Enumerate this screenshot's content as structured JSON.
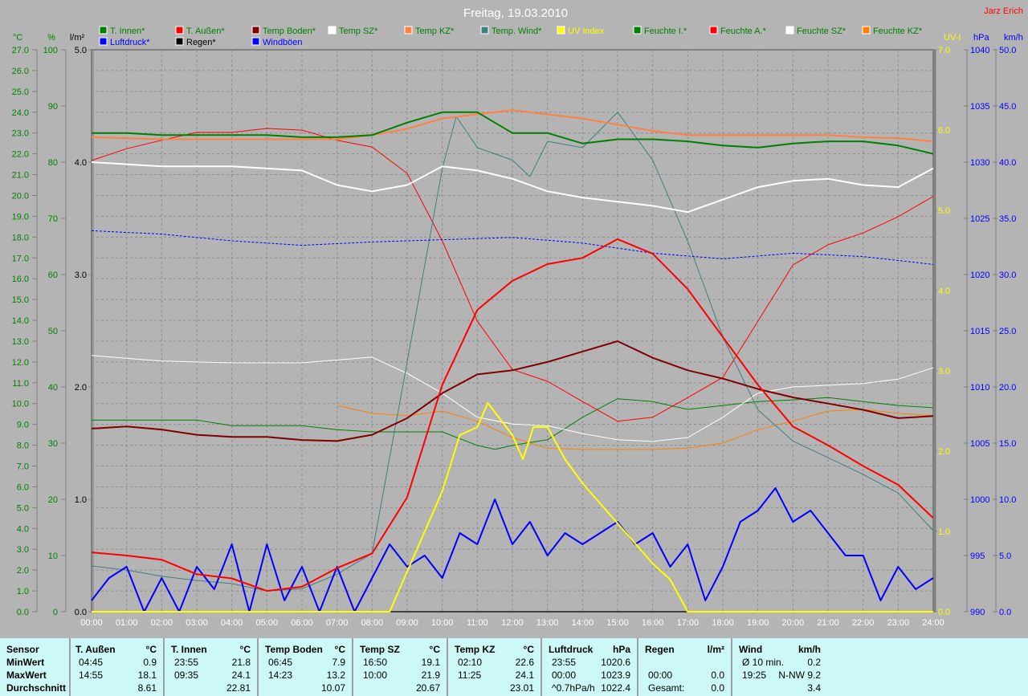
{
  "title": "Freitag, 19.03.2010",
  "author": "Jarz Erich",
  "colors": {
    "background": "#b4b4b4",
    "table_bg": "#ccf8f8"
  },
  "legend": [
    {
      "label": "T. Innen*",
      "swatch": "#008000",
      "text_color": "#008000"
    },
    {
      "label": "T. Außen*",
      "swatch": "#ff0000",
      "text_color": "#008000"
    },
    {
      "label": "Temp Boden*",
      "swatch": "#800000",
      "text_color": "#008000"
    },
    {
      "label": "Temp SZ*",
      "swatch": "#ffffff",
      "text_color": "#008000"
    },
    {
      "label": "Temp KZ*",
      "swatch": "#ff8040",
      "text_color": "#008000"
    },
    {
      "label": "Temp. Wind*",
      "swatch": "#408080",
      "text_color": "#008000"
    },
    {
      "label": "UV Index",
      "swatch": "#ffff00",
      "text_color": "#ffff00"
    },
    {
      "label": "Feuchte I.*",
      "swatch": "#008000",
      "text_color": "#008000"
    },
    {
      "label": "Feuchte A.*",
      "swatch": "#ff0000",
      "text_color": "#008000"
    },
    {
      "label": "Feuchte SZ*",
      "swatch": "#ffffff",
      "text_color": "#008000"
    },
    {
      "label": "Feuchte KZ*",
      "swatch": "#ff8000",
      "text_color": "#008000"
    },
    {
      "label": "Luftdruck*",
      "swatch": "#0000ff",
      "text_color": "#0000ff"
    },
    {
      "label": "Regen*",
      "swatch": "#000000",
      "text_color": "#000000"
    },
    {
      "label": "Windböen",
      "swatch": "#0000ff",
      "text_color": "#0000ff"
    }
  ],
  "chart_data": {
    "type": "line",
    "title": "Freitag, 19.03.2010",
    "grid": true,
    "legend_placement": "top",
    "x_ticks": [
      "00:00",
      "01:00",
      "02:00",
      "03:00",
      "04:00",
      "05:00",
      "06:00",
      "07:00",
      "08:00",
      "09:00",
      "10:00",
      "11:00",
      "12:00",
      "13:00",
      "14:00",
      "15:00",
      "16:00",
      "17:00",
      "18:00",
      "19:00",
      "20:00",
      "21:00",
      "22:00",
      "23:00",
      "24:00"
    ],
    "xlim": [
      0,
      24
    ],
    "axes": {
      "temp": {
        "label": "°C",
        "side": "left",
        "range": [
          0,
          27
        ],
        "step": 1,
        "decimals": 1,
        "color": "#008000"
      },
      "hum": {
        "label": "%",
        "side": "left",
        "range": [
          0,
          100
        ],
        "step": 10,
        "decimals": 0,
        "color": "#008000"
      },
      "rain": {
        "label": "l/m²",
        "side": "left",
        "range": [
          0,
          5
        ],
        "step": 1,
        "decimals": 1,
        "color": "#000000"
      },
      "uv": {
        "label": "UV-I",
        "side": "right",
        "range": [
          0,
          7
        ],
        "step": 1,
        "decimals": 1,
        "color": "#ffff00"
      },
      "press": {
        "label": "hPa",
        "side": "right",
        "range": [
          990,
          1040
        ],
        "step": 5,
        "decimals": 0,
        "color": "#0000ff"
      },
      "wind": {
        "label": "km/h",
        "side": "right",
        "range": [
          0,
          50
        ],
        "step": 5,
        "decimals": 1,
        "color": "#0000ff"
      }
    },
    "series": [
      {
        "name": "Feuchte I.*",
        "axis": "hum",
        "color": "#008000",
        "width": 1,
        "x": [
          0,
          3,
          4,
          6,
          7,
          8,
          10,
          11,
          11.5,
          12,
          13,
          14,
          15,
          16,
          17,
          18,
          19,
          20,
          21,
          22,
          23,
          24
        ],
        "y": [
          34.1,
          34.1,
          33.1,
          33.1,
          32.4,
          32.0,
          32.0,
          29.6,
          28.9,
          29.6,
          30.6,
          34.6,
          37.9,
          37.4,
          36.0,
          36.7,
          37.4,
          37.7,
          38.1,
          37.4,
          36.7,
          36.3
        ]
      },
      {
        "name": "Feuchte A.*",
        "axis": "hum",
        "color": "#ff0000",
        "width": 1,
        "x": [
          0,
          1,
          2,
          3,
          4,
          5,
          6,
          7,
          8,
          9,
          10,
          11,
          12,
          13,
          14,
          15,
          16,
          17,
          18,
          19,
          20,
          21,
          22,
          23,
          24
        ],
        "y": [
          80.3,
          82.4,
          83.9,
          85.3,
          85.3,
          86.0,
          85.7,
          83.9,
          82.7,
          78.0,
          66.0,
          51.7,
          43.1,
          41.0,
          37.4,
          33.9,
          34.6,
          38.1,
          41.7,
          51.7,
          61.7,
          65.3,
          67.4,
          70.3,
          73.9
        ]
      },
      {
        "name": "Feuchte SZ*",
        "axis": "hum",
        "color": "#ffffff",
        "width": 1,
        "x": [
          0,
          2,
          4,
          6,
          8,
          9,
          10,
          11,
          12,
          13,
          14,
          15,
          16,
          17,
          18,
          19,
          20,
          21,
          22,
          23,
          24
        ],
        "y": [
          45.6,
          44.6,
          44.3,
          44.3,
          45.3,
          42.4,
          38.9,
          34.6,
          33.4,
          33.1,
          31.7,
          30.6,
          30.3,
          31.0,
          34.6,
          38.9,
          40.0,
          40.3,
          40.6,
          41.4,
          43.4
        ]
      },
      {
        "name": "Feuchte KZ*",
        "axis": "hum",
        "color": "#ff8000",
        "width": 1,
        "x": [
          7,
          8,
          9,
          10,
          11,
          12,
          13,
          14,
          15,
          16,
          17,
          18,
          19,
          20,
          21,
          22,
          23,
          24
        ],
        "y": [
          36.7,
          35.3,
          34.9,
          35.7,
          33.9,
          31.0,
          29.1,
          28.9,
          28.9,
          28.9,
          29.1,
          30.0,
          32.4,
          33.9,
          35.7,
          36.0,
          35.3,
          34.9
        ]
      },
      {
        "name": "Temp. Wind*",
        "axis": "temp",
        "color": "#408080",
        "width": 1,
        "x": [
          0,
          1,
          2,
          3,
          4,
          5,
          6,
          7,
          8,
          9,
          10,
          10.4,
          11,
          12,
          12.5,
          13,
          14,
          15,
          16,
          17,
          18,
          19,
          20,
          21,
          22,
          23,
          24
        ],
        "y": [
          2.2,
          2.0,
          1.7,
          1.5,
          1.35,
          1.0,
          1.1,
          1.8,
          2.8,
          12.0,
          21.3,
          23.8,
          22.3,
          21.7,
          20.9,
          22.6,
          22.3,
          24.0,
          21.7,
          17.8,
          13.2,
          9.7,
          8.2,
          7.4,
          6.6,
          5.7,
          3.9
        ]
      },
      {
        "name": "Luftdruck*",
        "axis": "press",
        "color": "#0000ff",
        "width": 1,
        "dash": "3,2",
        "x": [
          0,
          2,
          4,
          6,
          8,
          10,
          12,
          14,
          16,
          18,
          20,
          22,
          24
        ],
        "y": [
          1023.9,
          1023.6,
          1023.0,
          1022.6,
          1022.9,
          1023.1,
          1023.3,
          1022.8,
          1021.9,
          1021.4,
          1021.9,
          1021.6,
          1020.9
        ]
      },
      {
        "name": "Windböen",
        "axis": "wind",
        "color": "#0000ff",
        "width": 2,
        "x": [
          0,
          0.5,
          1,
          1.5,
          2,
          2.5,
          3,
          3.5,
          4,
          4.5,
          5,
          5.5,
          6,
          6.5,
          7,
          7.5,
          8,
          8.5,
          9,
          9.5,
          10,
          10.5,
          11,
          11.5,
          12,
          12.5,
          13,
          13.5,
          14,
          14.5,
          15,
          15.5,
          16,
          16.5,
          17,
          17.5,
          18,
          18.5,
          19,
          19.5,
          20,
          20.5,
          21,
          21.5,
          22,
          22.5,
          23,
          23.5,
          24
        ],
        "y": [
          1,
          3,
          4,
          0,
          3,
          0,
          4,
          2,
          6,
          0,
          6,
          1,
          4,
          0,
          4,
          0,
          3,
          6,
          4,
          5,
          3,
          7,
          6,
          10,
          6,
          8,
          5,
          7,
          6,
          7,
          8,
          6,
          7,
          4,
          6,
          1,
          4,
          8,
          9,
          11,
          8,
          9,
          7,
          5,
          5,
          1,
          4,
          2,
          3
        ]
      },
      {
        "name": "Regen*",
        "axis": "rain",
        "color": "#000000",
        "width": 1,
        "x": [
          0,
          24
        ],
        "y": [
          0,
          0
        ]
      },
      {
        "name": "UV Index",
        "axis": "uv",
        "color": "#ffff00",
        "width": 2,
        "x": [
          0,
          8.5,
          9,
          10,
          10.5,
          11,
          11.3,
          12,
          12.3,
          12.6,
          13,
          13.5,
          14,
          15,
          16,
          16.5,
          17,
          24
        ],
        "y": [
          0,
          0,
          0.5,
          1.5,
          2.2,
          2.3,
          2.6,
          2.2,
          1.9,
          2.3,
          2.3,
          1.9,
          1.6,
          1.1,
          0.6,
          0.4,
          0,
          0
        ]
      },
      {
        "name": "Temp SZ*",
        "axis": "temp",
        "color": "#ffffff",
        "width": 2,
        "x": [
          0,
          2,
          4,
          6,
          7,
          8,
          9,
          10,
          11,
          12,
          13,
          14,
          15,
          16,
          17,
          18,
          19,
          20,
          21,
          22,
          23,
          24
        ],
        "y": [
          21.6,
          21.4,
          21.4,
          21.2,
          20.5,
          20.2,
          20.5,
          21.4,
          21.2,
          20.8,
          20.2,
          19.9,
          19.7,
          19.5,
          19.2,
          19.8,
          20.4,
          20.7,
          20.8,
          20.5,
          20.4,
          21.3
        ]
      },
      {
        "name": "Temp KZ*",
        "axis": "temp",
        "color": "#ff8040",
        "width": 2,
        "x": [
          0,
          2,
          4,
          6,
          7,
          8,
          9,
          10,
          11,
          12,
          13,
          14,
          15,
          16,
          17,
          18,
          19,
          20,
          21,
          22,
          23,
          24
        ],
        "y": [
          22.8,
          22.7,
          22.7,
          22.7,
          22.7,
          22.9,
          23.2,
          23.7,
          23.9,
          24.1,
          23.9,
          23.7,
          23.4,
          23.1,
          22.9,
          22.9,
          22.9,
          22.9,
          22.9,
          22.8,
          22.75,
          22.6
        ]
      },
      {
        "name": "T. Innen*",
        "axis": "temp",
        "color": "#008000",
        "width": 2,
        "x": [
          0,
          1,
          2,
          3,
          4,
          5,
          6,
          7,
          8,
          9,
          10,
          11,
          12,
          13,
          14,
          15,
          16,
          17,
          18,
          19,
          20,
          21,
          22,
          23,
          24
        ],
        "y": [
          23.0,
          23.0,
          22.9,
          22.9,
          22.9,
          22.9,
          22.8,
          22.8,
          22.9,
          23.5,
          24.0,
          24.0,
          23.0,
          23.0,
          22.5,
          22.7,
          22.7,
          22.6,
          22.4,
          22.3,
          22.5,
          22.6,
          22.6,
          22.4,
          22.0
        ]
      },
      {
        "name": "Temp Boden*",
        "axis": "temp",
        "color": "#800000",
        "width": 2,
        "x": [
          0,
          1,
          2,
          3,
          4,
          5,
          6,
          7,
          8,
          9,
          10,
          11,
          12,
          13,
          14,
          15,
          16,
          17,
          18,
          19,
          20,
          21,
          22,
          23,
          24
        ],
        "y": [
          8.8,
          8.9,
          8.75,
          8.5,
          8.4,
          8.4,
          8.25,
          8.2,
          8.5,
          9.3,
          10.5,
          11.4,
          11.6,
          12.0,
          12.5,
          13.0,
          12.2,
          11.6,
          11.2,
          10.7,
          10.3,
          10.0,
          9.7,
          9.3,
          9.4
        ]
      },
      {
        "name": "T. Außen*",
        "axis": "temp",
        "color": "#ff0000",
        "width": 2,
        "x": [
          0,
          1,
          2,
          3,
          4,
          5,
          6,
          7,
          8,
          9,
          10,
          11,
          12,
          13,
          14,
          15,
          16,
          17,
          18,
          19,
          20,
          21,
          22,
          23,
          24
        ],
        "y": [
          2.85,
          2.7,
          2.5,
          1.8,
          1.6,
          1.0,
          1.2,
          2.1,
          2.8,
          5.5,
          10.9,
          14.5,
          15.9,
          16.7,
          17.0,
          17.9,
          17.2,
          15.5,
          13.2,
          10.9,
          8.9,
          8.0,
          7.0,
          6.1,
          4.5
        ]
      }
    ]
  },
  "table": {
    "row_labels": [
      "Sensor",
      "MinWert",
      "MaxWert",
      "Durchschnitt"
    ],
    "columns": [
      {
        "name": "T. Außen",
        "unit": "°C",
        "rows": [
          [
            "04:45",
            "0.9"
          ],
          [
            "14:55",
            "18.1"
          ],
          [
            "",
            "8.61"
          ]
        ]
      },
      {
        "name": "T. Innen",
        "unit": "°C",
        "rows": [
          [
            "23:55",
            "21.8"
          ],
          [
            "09:35",
            "24.1"
          ],
          [
            "",
            "22.81"
          ]
        ]
      },
      {
        "name": "Temp Boden",
        "unit": "°C",
        "rows": [
          [
            "06:45",
            "7.9"
          ],
          [
            "14:23",
            "13.2"
          ],
          [
            "",
            "10.07"
          ]
        ]
      },
      {
        "name": "Temp SZ",
        "unit": "°C",
        "rows": [
          [
            "16:50",
            "19.1"
          ],
          [
            "10:00",
            "21.9"
          ],
          [
            "",
            "20.67"
          ]
        ]
      },
      {
        "name": "Temp KZ",
        "unit": "°C",
        "rows": [
          [
            "02:10",
            "22.6"
          ],
          [
            "11:25",
            "24.1"
          ],
          [
            "",
            "23.01"
          ]
        ]
      },
      {
        "name": "Luftdruck",
        "unit": "hPa",
        "rows": [
          [
            "23:55",
            "1020.6"
          ],
          [
            "00:00",
            "1023.9"
          ],
          [
            "^0.7hPa/h",
            "1022.4"
          ]
        ]
      },
      {
        "name": "Regen",
        "unit": "l/m²",
        "rows": [
          [
            "",
            ""
          ],
          [
            "00:00",
            "0.0"
          ],
          [
            "Gesamt:",
            "0.0"
          ]
        ]
      },
      {
        "name": "Wind",
        "unit": "km/h",
        "rows": [
          [
            "Ø 10 min.",
            "0.2"
          ],
          [
            "19:25",
            "N-NW 9.2"
          ],
          [
            "",
            "3.4"
          ]
        ]
      }
    ]
  }
}
